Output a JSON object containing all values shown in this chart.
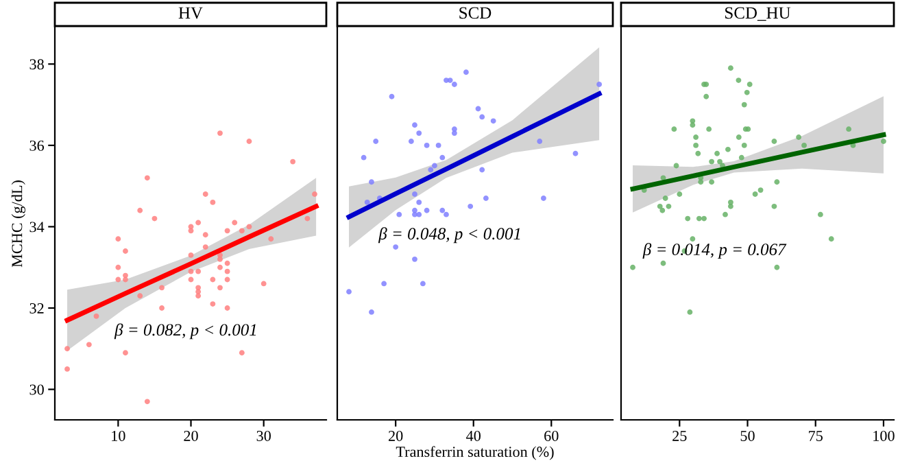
{
  "chart_data": [
    {
      "type": "scatter",
      "title": "HV",
      "ylabel": "MCHC (g/dL)",
      "xlim": [
        1.3,
        38.6
      ],
      "xticks": [
        10,
        20,
        30
      ],
      "ylim": [
        29.25,
        38.9
      ],
      "yticks": [
        30,
        32,
        34,
        36,
        38
      ],
      "grid": false,
      "annotations": [
        "β = 0.082, p < 0.001"
      ],
      "series": [
        {
          "color": "#ff7f7f",
          "marker": "circle",
          "x": [
            3,
            3,
            6,
            7,
            10,
            10,
            10,
            11,
            11,
            11,
            11,
            13,
            13,
            14,
            14,
            15,
            16,
            16,
            20,
            20,
            20,
            20,
            20,
            21,
            21,
            21,
            21,
            21,
            22,
            22,
            22,
            23,
            23,
            23,
            24,
            24,
            24,
            24,
            24,
            25,
            25,
            25,
            25,
            25,
            26,
            27,
            27,
            28,
            28,
            30,
            31,
            34,
            36,
            37
          ],
          "values": [
            31.0,
            30.5,
            31.1,
            31.8,
            33.7,
            33.0,
            32.7,
            33.4,
            32.8,
            32.7,
            30.9,
            34.4,
            32.3,
            35.2,
            29.7,
            34.2,
            32.5,
            32.0,
            34.0,
            33.9,
            33.3,
            32.9,
            32.7,
            34.1,
            32.9,
            32.5,
            32.4,
            32.3,
            34.8,
            33.8,
            33.5,
            34.6,
            32.7,
            32.1,
            36.3,
            33.2,
            33.0,
            32.5,
            33.3,
            33.9,
            33.1,
            32.9,
            32.7,
            32.0,
            34.1,
            33.9,
            30.9,
            36.1,
            34.0,
            32.6,
            33.7,
            35.6,
            34.2,
            34.8
          ]
        },
        {
          "type": "line",
          "color": "#ff0000",
          "x": [
            3,
            11,
            20,
            28,
            37.2
          ],
          "values": [
            31.7,
            32.36,
            33.09,
            33.75,
            34.5
          ],
          "lower": [
            30.95,
            32.0,
            32.89,
            33.45,
            33.78
          ],
          "upper": [
            32.45,
            32.7,
            33.29,
            34.05,
            35.2
          ]
        }
      ]
    },
    {
      "type": "scatter",
      "title": "SCD",
      "xlabel": "Transferrin saturation (%)",
      "xlim": [
        5,
        75.8
      ],
      "xticks": [
        20,
        40,
        60
      ],
      "ylim": [
        29.25,
        38.9
      ],
      "yticks": [
        30,
        32,
        34,
        36,
        38
      ],
      "tick_labels": "x",
      "grid": false,
      "annotations": [
        "β = 0.048, p < 0.001"
      ],
      "series": [
        {
          "color": "#7f7fff",
          "marker": "circle",
          "x": [
            8,
            11.8,
            12.7,
            13.8,
            13.8,
            14.9,
            15.9,
            17,
            19,
            20,
            20.9,
            24,
            24.9,
            24.9,
            24.9,
            24.9,
            24.9,
            26,
            26,
            26,
            27,
            28,
            28,
            29,
            30,
            31,
            32,
            32,
            33,
            33,
            34,
            35.1,
            35.1,
            35.1,
            38.1,
            39.2,
            41.2,
            42.2,
            42.2,
            43.2,
            45.1,
            57,
            58,
            66.2,
            72.3
          ],
          "values": [
            32.4,
            35.7,
            34.6,
            35.1,
            31.9,
            36.1,
            34.7,
            32.6,
            37.2,
            33.5,
            34.3,
            36.1,
            36.5,
            34.8,
            34.4,
            34.3,
            33.2,
            36.3,
            34.3,
            34.6,
            32.6,
            36.0,
            34.4,
            35.4,
            35.5,
            36.0,
            35.7,
            34.4,
            37.6,
            34.3,
            37.6,
            37.5,
            36.4,
            36.3,
            37.8,
            34.5,
            36.9,
            36.7,
            35.4,
            34.7,
            36.6,
            36.1,
            34.7,
            35.8,
            37.5
          ]
        },
        {
          "type": "line",
          "color": "#0000cc",
          "x": [
            8,
            20,
            33,
            50,
            72.3
          ],
          "values": [
            34.24,
            34.81,
            35.42,
            36.22,
            37.27
          ],
          "lower": [
            33.49,
            34.41,
            35.2,
            35.82,
            36.13
          ],
          "upper": [
            34.99,
            35.21,
            35.64,
            36.62,
            38.41
          ]
        }
      ]
    },
    {
      "type": "scatter",
      "title": "SCD_HU",
      "xlim": [
        3.5,
        103.8
      ],
      "xticks": [
        25,
        50,
        75,
        100
      ],
      "ylim": [
        29.25,
        38.9
      ],
      "yticks": [
        30,
        32,
        34,
        36,
        38
      ],
      "tick_labels": "x",
      "grid": false,
      "annotations": [
        "β = 0.014, p = 0.067"
      ],
      "series": [
        {
          "color": "#66b266",
          "marker": "circle",
          "x": [
            7.8,
            12,
            19,
            19,
            17.8,
            18.7,
            19.8,
            21,
            23,
            23.8,
            25,
            26.8,
            28,
            28.8,
            29.8,
            29.8,
            29.8,
            31,
            31,
            31.8,
            32.2,
            32.8,
            32.8,
            34,
            34.8,
            34.8,
            34,
            35.8,
            36.8,
            36.8,
            38.8,
            39.8,
            40.8,
            41.8,
            42.8,
            43.8,
            43.8,
            43.8,
            46.7,
            46.8,
            47.8,
            48.8,
            48.8,
            49.3,
            49.8,
            50.2,
            50.8,
            52.8,
            54.8,
            59.8,
            59.8,
            60.8,
            60.8,
            68.8,
            70.8,
            76.8,
            80.8,
            87.2,
            88.8,
            100
          ],
          "values": [
            33.0,
            34.9,
            35.2,
            33.1,
            34.5,
            34.4,
            34.7,
            34.5,
            36.4,
            35.5,
            34.8,
            33.4,
            34.2,
            31.9,
            36.6,
            36.5,
            33.7,
            36.2,
            36.0,
            35.8,
            34.2,
            35.2,
            35.1,
            37.5,
            37.5,
            37.2,
            34.2,
            36.4,
            35.6,
            35.1,
            35.8,
            35.6,
            35.5,
            34.3,
            35.9,
            37.9,
            34.6,
            34.5,
            37.6,
            36.2,
            35.7,
            37.0,
            36.0,
            36.4,
            37.3,
            36.4,
            37.5,
            34.8,
            34.9,
            36.1,
            34.5,
            35.1,
            33.0,
            36.2,
            36.0,
            34.3,
            33.7,
            36.4,
            36.0,
            36.1
          ]
        },
        {
          "type": "line",
          "color": "#006400",
          "x": [
            7.8,
            30,
            45,
            70,
            100
          ],
          "values": [
            34.93,
            35.25,
            35.47,
            35.83,
            36.26
          ],
          "lower": [
            34.35,
            35.03,
            35.33,
            35.43,
            35.31
          ],
          "upper": [
            35.51,
            35.47,
            35.61,
            36.23,
            37.21
          ]
        }
      ]
    }
  ]
}
